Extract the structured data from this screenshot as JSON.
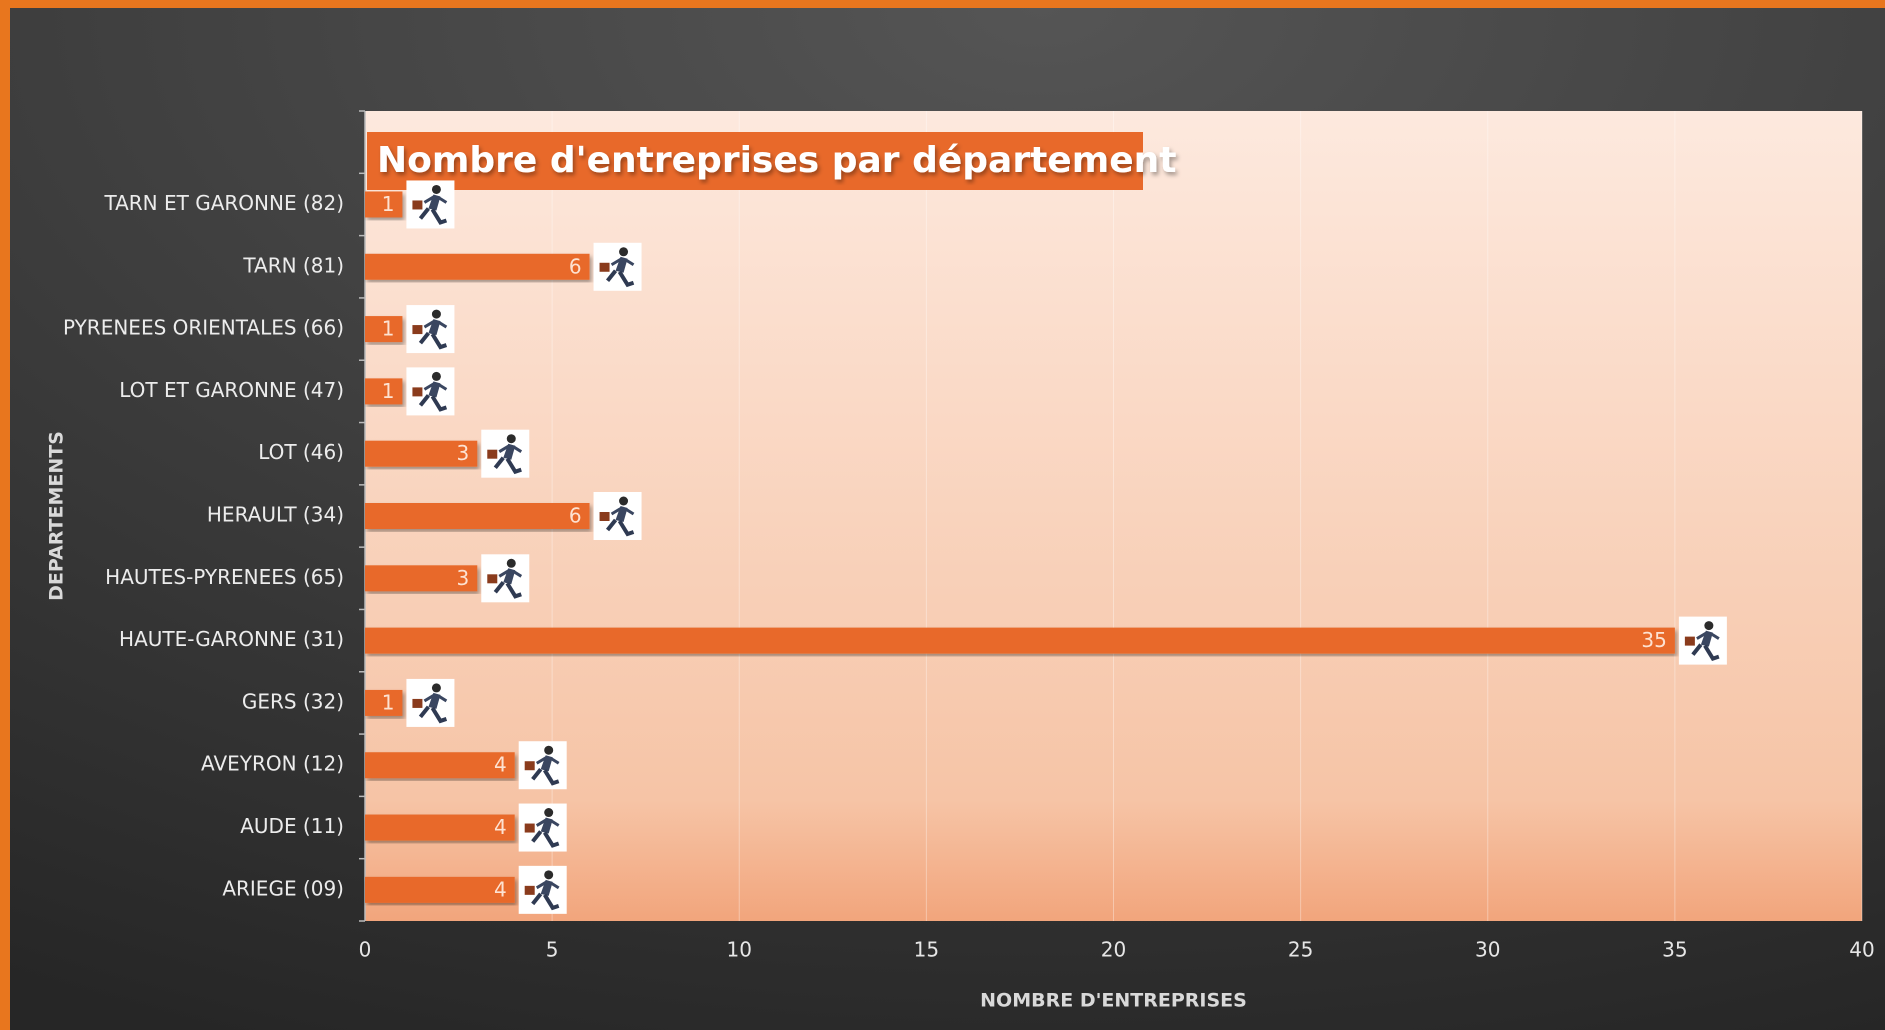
{
  "chart_data": {
    "type": "hbar",
    "title": "Nombre d'entreprises par département",
    "categories": [
      "TARN ET GARONNE (82)",
      "TARN (81)",
      "PYRENEES ORIENTALES (66)",
      "LOT ET GARONNE (47)",
      "LOT (46)",
      "HERAULT (34)",
      "HAUTES-PYRENEES (65)",
      "HAUTE-GARONNE (31)",
      "GERS (32)",
      "AVEYRON (12)",
      "AUDE (11)",
      "ARIEGE (09)"
    ],
    "values": [
      1,
      6,
      1,
      1,
      3,
      6,
      3,
      35,
      1,
      4,
      4,
      4
    ],
    "color": "#e8692a",
    "xlabel": "NOMBRE D'ENTREPRISES",
    "ylabel": "DEPARTEMENTS",
    "xlim": [
      0,
      40
    ],
    "xticks": [
      0,
      5,
      10,
      15,
      20,
      25,
      30,
      35,
      40
    ],
    "grid": true
  }
}
